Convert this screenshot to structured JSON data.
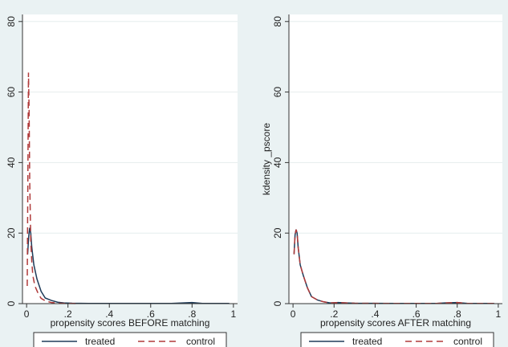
{
  "chart_data": [
    {
      "type": "line",
      "title": "",
      "xlabel": "propensity scores BEFORE matching",
      "ylabel": "",
      "xlim": [
        -0.02,
        1.02
      ],
      "ylim": [
        0,
        82
      ],
      "x_ticks": [
        0,
        0.2,
        0.4,
        0.6,
        0.8,
        1
      ],
      "x_tick_labels": [
        "0",
        ".2",
        ".4",
        ".6",
        ".8",
        "1"
      ],
      "y_ticks": [
        0,
        20,
        40,
        60,
        80
      ],
      "y_tick_labels": [
        "0",
        "20",
        "40",
        "60",
        "80"
      ],
      "grid": true,
      "legend": "bottom",
      "series": [
        {
          "name": "treated",
          "color": "#1f3c5a",
          "dash": "solid",
          "x": [
            0.005,
            0.01,
            0.015,
            0.02,
            0.025,
            0.035,
            0.05,
            0.07,
            0.09,
            0.12,
            0.15,
            0.18,
            0.22,
            0.3,
            0.5,
            0.7,
            0.8,
            0.85,
            0.98
          ],
          "y": [
            14,
            19,
            21.5,
            20,
            16,
            11,
            7,
            3.5,
            1.6,
            0.9,
            0.4,
            0.2,
            0.1,
            0.05,
            0.05,
            0.05,
            0.3,
            0.05,
            0.05
          ]
        },
        {
          "name": "control",
          "color": "#b03a3a",
          "dash": "dashed",
          "x": [
            0.003,
            0.006,
            0.009,
            0.012,
            0.015,
            0.02,
            0.025,
            0.03,
            0.04,
            0.055,
            0.07,
            0.09,
            0.12,
            0.16,
            0.25
          ],
          "y": [
            5,
            35,
            65.5,
            55,
            35,
            18,
            12,
            8,
            5,
            3,
            1.5,
            0.8,
            0.3,
            0.1,
            0
          ]
        }
      ]
    },
    {
      "type": "line",
      "title": "",
      "xlabel": "propensity scores AFTER matching",
      "ylabel": "kdensity _pscore",
      "xlim": [
        -0.02,
        1.02
      ],
      "ylim": [
        0,
        82
      ],
      "x_ticks": [
        0,
        0.2,
        0.4,
        0.6,
        0.8,
        1
      ],
      "x_tick_labels": [
        "0",
        ".2",
        ".4",
        ".6",
        ".8",
        "1"
      ],
      "y_ticks": [
        0,
        20,
        40,
        60,
        80
      ],
      "y_tick_labels": [
        "0",
        "20",
        "40",
        "60",
        "80"
      ],
      "grid": true,
      "legend": "bottom",
      "series": [
        {
          "name": "treated",
          "color": "#1f3c5a",
          "dash": "solid",
          "x": [
            0.005,
            0.01,
            0.015,
            0.02,
            0.025,
            0.035,
            0.05,
            0.07,
            0.09,
            0.12,
            0.15,
            0.18,
            0.22,
            0.26,
            0.3,
            0.5,
            0.7,
            0.74,
            0.8,
            0.85,
            0.98
          ],
          "y": [
            14,
            19.5,
            21,
            20,
            16,
            11,
            8,
            4.5,
            2,
            1,
            0.5,
            0.2,
            0.3,
            0.2,
            0.1,
            0.05,
            0.05,
            0.2,
            0.3,
            0.05,
            0.05
          ]
        },
        {
          "name": "control",
          "color": "#b03a3a",
          "dash": "dashed",
          "x": [
            0.005,
            0.01,
            0.015,
            0.02,
            0.025,
            0.035,
            0.05,
            0.07,
            0.09,
            0.12,
            0.15,
            0.18,
            0.22,
            0.26,
            0.3,
            0.5,
            0.7,
            0.74,
            0.8,
            0.85,
            0.98
          ],
          "y": [
            14,
            19.5,
            21,
            20,
            16,
            11,
            8,
            4.5,
            2,
            1,
            0.5,
            0.2,
            0.3,
            0.2,
            0.1,
            0.05,
            0.05,
            0.2,
            0.3,
            0.05,
            0.05
          ]
        }
      ]
    }
  ]
}
